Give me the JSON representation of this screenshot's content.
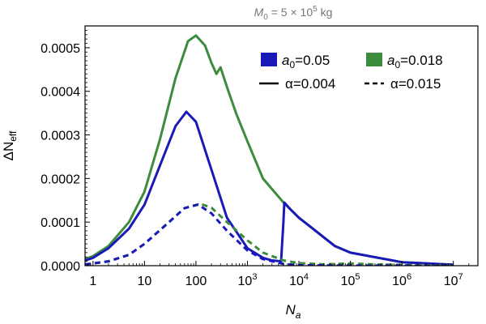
{
  "chart_data": {
    "type": "line",
    "title": {
      "m": "M",
      "sub": "0",
      "mid": " = 5 × 10",
      "sup": "5",
      "tail": " kg"
    },
    "xlabel": {
      "main": "N",
      "sub": "a"
    },
    "ylabel": {
      "main": "ΔN",
      "sub": "eff"
    },
    "xscale": "log",
    "xlim": [
      0.7,
      30000000
    ],
    "ylim": [
      0,
      0.00055
    ],
    "grid": false,
    "legend_position": "top-right",
    "xticks": [
      {
        "value": 1,
        "text": "1"
      },
      {
        "value": 10,
        "text": "10"
      },
      {
        "value": 100,
        "text": "100"
      },
      {
        "value": 1000,
        "base": "10",
        "exp": "3"
      },
      {
        "value": 10000,
        "base": "10",
        "exp": "4"
      },
      {
        "value": 100000,
        "base": "10",
        "exp": "5"
      },
      {
        "value": 1000000,
        "base": "10",
        "exp": "6"
      },
      {
        "value": 10000000,
        "base": "10",
        "exp": "7"
      }
    ],
    "yticks": [
      {
        "value": 0,
        "text": "0.0000"
      },
      {
        "value": 0.0001,
        "text": "0.0001"
      },
      {
        "value": 0.0002,
        "text": "0.0002"
      },
      {
        "value": 0.0003,
        "text": "0.0003"
      },
      {
        "value": 0.0004,
        "text": "0.0004"
      },
      {
        "value": 0.0005,
        "text": "0.0005"
      }
    ],
    "legend": {
      "colors": [
        {
          "color": "#1a1ab8",
          "main": "a",
          "sub": "0",
          "rest": "=0.05"
        },
        {
          "color": "#3d8c3d",
          "main": "a",
          "sub": "0",
          "rest": "=0.018"
        }
      ],
      "styles": [
        {
          "dash": "solid",
          "text": "α=0.004"
        },
        {
          "dash": "dashed",
          "text": "α=0.015"
        }
      ]
    },
    "series": [
      {
        "color": "#3d8c3d",
        "dash": "solid",
        "x": [
          0.7,
          1,
          2,
          5,
          10,
          20,
          40,
          70,
          100,
          150,
          200,
          250,
          300,
          400,
          600,
          1000,
          2000,
          5000,
          10000,
          50000,
          100000,
          1000000,
          10000000
        ],
        "y": [
          1.5e-05,
          2.2e-05,
          4.5e-05,
          0.0001,
          0.00017,
          0.00029,
          0.00043,
          0.000515,
          0.000528,
          0.000505,
          0.000465,
          0.00044,
          0.000455,
          0.00041,
          0.00035,
          0.000285,
          0.0002,
          0.000145,
          0.00011,
          4.5e-05,
          3e-05,
          8e-06,
          2e-06
        ]
      },
      {
        "color": "#1a1ab8",
        "dash": "solid",
        "x": [
          0.7,
          1,
          2,
          5,
          10,
          20,
          40,
          65,
          100,
          200,
          400,
          1000,
          2000,
          3000,
          4500,
          5000,
          5200,
          7000,
          10000,
          50000,
          100000,
          1000000,
          10000000
        ],
        "y": [
          1.2e-05,
          1.8e-05,
          4e-05,
          8.5e-05,
          0.00014,
          0.00023,
          0.00032,
          0.000353,
          0.00033,
          0.00022,
          0.00011,
          4e-05,
          1.8e-05,
          1.2e-05,
          1e-05,
          0.0001,
          0.000145,
          0.000128,
          0.00011,
          4.5e-05,
          3e-05,
          8e-06,
          2e-06
        ]
      },
      {
        "color": "#3d8c3d",
        "dash": "dashed",
        "x": [
          0.7,
          1,
          2,
          5,
          10,
          30,
          60,
          120,
          200,
          400,
          1000,
          2000,
          5000,
          10000,
          30000,
          100000,
          300000,
          1000000,
          10000000
        ],
        "y": [
          3e-06,
          5e-06,
          1e-05,
          2.5e-05,
          5e-05,
          0.0001,
          0.000132,
          0.000142,
          0.000133,
          0.0001,
          5.8e-05,
          3e-05,
          1.2e-05,
          6e-06,
          3e-06,
          5e-06,
          3e-06,
          1.5e-06,
          5e-07
        ]
      },
      {
        "color": "#1a1ab8",
        "dash": "dashed",
        "x": [
          0.7,
          1,
          2,
          5,
          10,
          30,
          60,
          110,
          200,
          400,
          1000,
          2000,
          5000,
          10000,
          100000,
          10000000
        ],
        "y": [
          3e-06,
          5e-06,
          1e-05,
          2.5e-05,
          5e-05,
          0.0001,
          0.000132,
          0.00014,
          0.00012,
          8e-05,
          3.5e-05,
          1.5e-05,
          4e-06,
          1e-06,
          3e-07,
          0
        ]
      }
    ]
  }
}
